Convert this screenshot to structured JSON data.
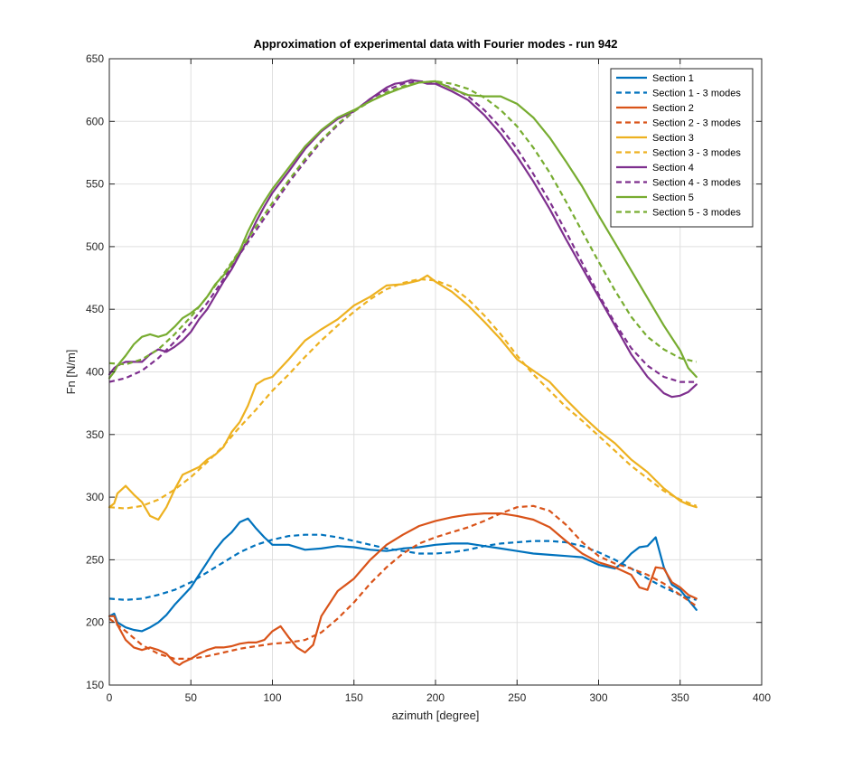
{
  "chart_data": {
    "type": "line",
    "title": "Approximation of experimental data with Fourier modes - run 942",
    "xlabel": "azimuth [degree]",
    "ylabel": "Fn [N/m]",
    "xlim": [
      0,
      400
    ],
    "ylim": [
      150,
      650
    ],
    "xticks": [
      0,
      50,
      100,
      150,
      200,
      250,
      300,
      350,
      400
    ],
    "yticks": [
      150,
      200,
      250,
      300,
      350,
      400,
      450,
      500,
      550,
      600,
      650
    ],
    "grid": true,
    "legend_position": "top-right",
    "series": [
      {
        "name": "Section 1",
        "color": "#0072BD",
        "style": "solid",
        "x": [
          0,
          3,
          5,
          10,
          15,
          20,
          25,
          30,
          35,
          40,
          45,
          50,
          55,
          60,
          65,
          70,
          75,
          80,
          85,
          90,
          95,
          100,
          110,
          120,
          130,
          140,
          150,
          160,
          170,
          180,
          190,
          200,
          210,
          220,
          230,
          240,
          250,
          260,
          270,
          280,
          290,
          300,
          310,
          315,
          320,
          325,
          330,
          335,
          340,
          345,
          350,
          355,
          360
        ],
        "y": [
          205,
          207,
          200,
          196,
          194,
          193,
          196,
          200,
          206,
          214,
          221,
          228,
          238,
          248,
          258,
          266,
          272,
          280,
          283,
          275,
          268,
          262,
          262,
          258,
          259,
          261,
          260,
          258,
          257,
          259,
          260,
          262,
          263,
          263,
          261,
          259,
          257,
          255,
          254,
          253,
          252,
          246,
          243,
          248,
          255,
          260,
          261,
          268,
          244,
          230,
          226,
          218,
          210
        ]
      },
      {
        "name": "Section 1 - 3 modes",
        "color": "#0072BD",
        "style": "dashed",
        "x": [
          0,
          10,
          20,
          30,
          40,
          50,
          60,
          70,
          80,
          90,
          100,
          110,
          120,
          130,
          140,
          150,
          160,
          170,
          180,
          190,
          200,
          210,
          220,
          230,
          240,
          250,
          260,
          270,
          280,
          290,
          300,
          310,
          320,
          330,
          340,
          350,
          360
        ],
        "y": [
          219,
          218,
          219,
          222,
          226,
          232,
          240,
          248,
          256,
          262,
          266,
          269,
          270,
          270,
          268,
          265,
          262,
          259,
          257,
          255,
          255,
          256,
          258,
          261,
          263,
          264,
          265,
          265,
          264,
          261,
          256,
          250,
          243,
          235,
          228,
          222,
          218
        ]
      },
      {
        "name": "Section 2",
        "color": "#D95319",
        "style": "solid",
        "x": [
          0,
          3,
          5,
          10,
          15,
          20,
          25,
          30,
          35,
          40,
          43,
          45,
          50,
          55,
          60,
          65,
          70,
          75,
          80,
          85,
          90,
          95,
          100,
          105,
          110,
          115,
          120,
          125,
          130,
          140,
          150,
          160,
          170,
          180,
          190,
          200,
          210,
          220,
          230,
          240,
          250,
          260,
          270,
          280,
          290,
          300,
          310,
          320,
          325,
          330,
          335,
          340,
          345,
          350,
          355,
          360
        ],
        "y": [
          205,
          205,
          198,
          186,
          180,
          178,
          180,
          178,
          175,
          168,
          166,
          168,
          171,
          175,
          178,
          180,
          180,
          181,
          183,
          184,
          184,
          186,
          193,
          197,
          188,
          180,
          176,
          182,
          205,
          225,
          235,
          250,
          262,
          270,
          277,
          281,
          284,
          286,
          287,
          287,
          285,
          282,
          276,
          265,
          255,
          248,
          244,
          238,
          228,
          226,
          244,
          243,
          232,
          228,
          222,
          219
        ]
      },
      {
        "name": "Section 2 - 3 modes",
        "color": "#D95319",
        "style": "dashed",
        "x": [
          0,
          10,
          20,
          30,
          40,
          50,
          60,
          70,
          80,
          90,
          100,
          110,
          120,
          130,
          140,
          150,
          160,
          170,
          180,
          190,
          200,
          210,
          220,
          230,
          240,
          250,
          260,
          270,
          280,
          290,
          300,
          310,
          320,
          330,
          340,
          350,
          360
        ],
        "y": [
          203,
          193,
          182,
          175,
          171,
          171,
          173,
          176,
          179,
          181,
          183,
          184,
          186,
          192,
          203,
          216,
          231,
          244,
          255,
          263,
          268,
          272,
          276,
          281,
          287,
          292,
          293,
          289,
          278,
          264,
          253,
          247,
          243,
          238,
          231,
          222,
          213
        ]
      },
      {
        "name": "Section 3",
        "color": "#EDB120",
        "style": "solid",
        "x": [
          0,
          3,
          5,
          10,
          15,
          20,
          25,
          30,
          35,
          40,
          45,
          50,
          55,
          60,
          65,
          70,
          75,
          80,
          85,
          90,
          95,
          100,
          110,
          120,
          130,
          140,
          150,
          160,
          170,
          180,
          190,
          195,
          200,
          210,
          220,
          230,
          240,
          250,
          260,
          270,
          280,
          290,
          300,
          310,
          320,
          330,
          340,
          350,
          355,
          360
        ],
        "y": [
          292,
          295,
          303,
          309,
          302,
          296,
          285,
          282,
          292,
          306,
          318,
          321,
          324,
          330,
          334,
          340,
          352,
          360,
          373,
          390,
          394,
          396,
          410,
          425,
          434,
          442,
          453,
          460,
          469,
          470,
          473,
          477,
          472,
          464,
          453,
          440,
          426,
          410,
          401,
          392,
          378,
          365,
          353,
          343,
          330,
          320,
          307,
          297,
          294,
          292
        ]
      },
      {
        "name": "Section 3 - 3 modes",
        "color": "#EDB120",
        "style": "dashed",
        "x": [
          0,
          10,
          20,
          30,
          40,
          50,
          60,
          70,
          80,
          90,
          100,
          110,
          120,
          130,
          140,
          150,
          160,
          170,
          180,
          190,
          200,
          210,
          220,
          230,
          240,
          250,
          260,
          270,
          280,
          290,
          300,
          310,
          320,
          330,
          340,
          350,
          360
        ],
        "y": [
          292,
          291,
          293,
          298,
          306,
          316,
          328,
          341,
          356,
          370,
          385,
          398,
          412,
          425,
          437,
          448,
          458,
          466,
          471,
          474,
          473,
          468,
          458,
          445,
          430,
          413,
          398,
          385,
          372,
          361,
          349,
          337,
          325,
          315,
          305,
          298,
          293
        ]
      },
      {
        "name": "Section 4",
        "color": "#7E2F8E",
        "style": "solid",
        "x": [
          0,
          3,
          5,
          10,
          15,
          20,
          25,
          30,
          35,
          40,
          45,
          50,
          55,
          60,
          65,
          70,
          75,
          80,
          85,
          90,
          95,
          100,
          110,
          120,
          130,
          140,
          150,
          160,
          170,
          175,
          180,
          185,
          190,
          195,
          200,
          210,
          220,
          230,
          240,
          250,
          260,
          270,
          280,
          290,
          300,
          310,
          320,
          330,
          340,
          345,
          350,
          355,
          360
        ],
        "y": [
          398,
          403,
          405,
          408,
          408,
          408,
          414,
          418,
          416,
          420,
          425,
          432,
          442,
          450,
          461,
          472,
          482,
          494,
          506,
          520,
          532,
          543,
          560,
          578,
          592,
          602,
          608,
          618,
          627,
          630,
          631,
          633,
          632,
          630,
          630,
          624,
          617,
          605,
          590,
          572,
          552,
          530,
          506,
          483,
          460,
          437,
          414,
          396,
          383,
          380,
          381,
          384,
          390
        ]
      },
      {
        "name": "Section 4 - 3 modes",
        "color": "#7E2F8E",
        "style": "dashed",
        "x": [
          0,
          10,
          20,
          30,
          40,
          50,
          60,
          70,
          80,
          90,
          100,
          110,
          120,
          130,
          140,
          150,
          160,
          170,
          180,
          190,
          200,
          210,
          220,
          230,
          240,
          250,
          260,
          270,
          280,
          290,
          300,
          310,
          320,
          330,
          340,
          350,
          360
        ],
        "y": [
          392,
          395,
          401,
          411,
          424,
          439,
          455,
          474,
          494,
          513,
          532,
          551,
          568,
          584,
          597,
          608,
          618,
          625,
          630,
          632,
          631,
          627,
          620,
          609,
          595,
          578,
          558,
          536,
          512,
          487,
          462,
          439,
          419,
          405,
          396,
          392,
          392
        ]
      },
      {
        "name": "Section 5",
        "color": "#77AC30",
        "style": "solid",
        "x": [
          0,
          3,
          5,
          10,
          15,
          20,
          25,
          30,
          35,
          40,
          45,
          50,
          55,
          60,
          65,
          70,
          75,
          80,
          85,
          90,
          95,
          100,
          110,
          120,
          130,
          140,
          150,
          160,
          170,
          180,
          190,
          200,
          210,
          220,
          230,
          240,
          250,
          260,
          270,
          280,
          290,
          300,
          310,
          320,
          330,
          340,
          350,
          355,
          360
        ],
        "y": [
          395,
          400,
          405,
          413,
          422,
          428,
          430,
          428,
          430,
          436,
          443,
          447,
          452,
          460,
          470,
          477,
          486,
          497,
          512,
          525,
          536,
          546,
          563,
          580,
          593,
          603,
          609,
          616,
          622,
          627,
          631,
          632,
          626,
          621,
          620,
          620,
          614,
          603,
          587,
          568,
          548,
          525,
          503,
          481,
          459,
          437,
          417,
          403,
          396
        ]
      },
      {
        "name": "Section 5 - 3 modes",
        "color": "#77AC30",
        "style": "dashed",
        "x": [
          0,
          10,
          20,
          30,
          40,
          50,
          60,
          70,
          80,
          90,
          100,
          110,
          120,
          130,
          140,
          150,
          160,
          170,
          180,
          190,
          200,
          210,
          220,
          230,
          240,
          250,
          260,
          270,
          280,
          290,
          300,
          310,
          320,
          330,
          340,
          350,
          360
        ],
        "y": [
          407,
          406,
          410,
          418,
          430,
          444,
          460,
          478,
          497,
          516,
          535,
          553,
          570,
          585,
          598,
          608,
          616,
          623,
          628,
          631,
          632,
          630,
          626,
          619,
          609,
          596,
          579,
          559,
          536,
          512,
          488,
          465,
          444,
          428,
          418,
          411,
          408
        ]
      }
    ]
  }
}
